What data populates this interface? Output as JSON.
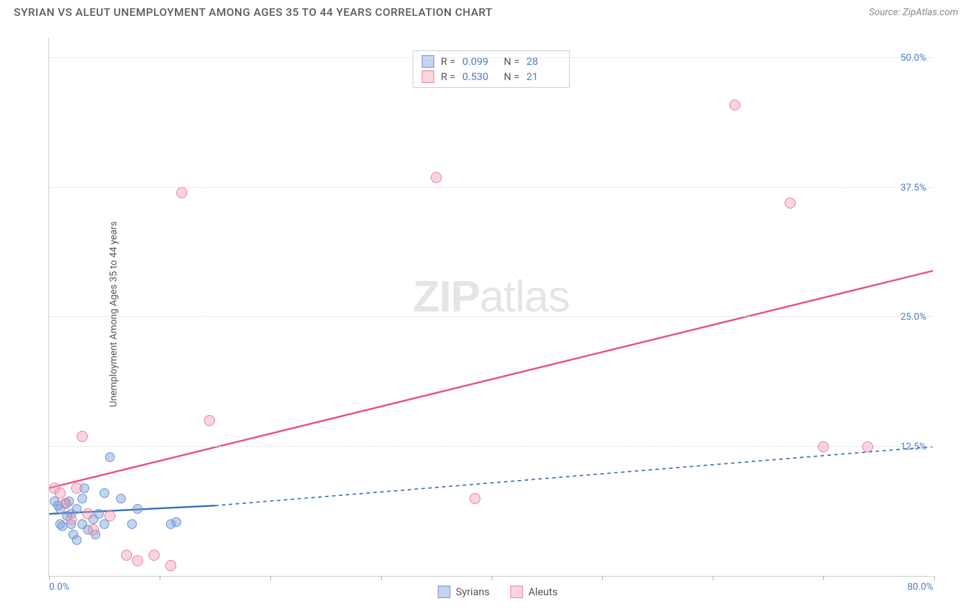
{
  "header": {
    "title": "SYRIAN VS ALEUT UNEMPLOYMENT AMONG AGES 35 TO 44 YEARS CORRELATION CHART",
    "source": "Source: ZipAtlas.com"
  },
  "watermark": {
    "part1": "ZIP",
    "part2": "atlas"
  },
  "chart": {
    "type": "scatter",
    "ylabel": "Unemployment Among Ages 35 to 44 years",
    "xlim": [
      0,
      80
    ],
    "ylim": [
      0,
      52
    ],
    "xtick_start_label": "0.0%",
    "xtick_end_label": "80.0%",
    "xtick_positions": [
      0,
      10,
      20,
      30,
      40,
      50,
      60,
      70,
      80
    ],
    "yticks": [
      {
        "v": 12.5,
        "label": "12.5%"
      },
      {
        "v": 25.0,
        "label": "25.0%"
      },
      {
        "v": 37.5,
        "label": "37.5%"
      },
      {
        "v": 50.0,
        "label": "50.0%"
      }
    ],
    "grid_color": "#e0e0e0",
    "background_color": "#ffffff",
    "axis_color": "#cccccc",
    "tick_label_color": "#4a7fc4",
    "label_fontsize": 14,
    "series": [
      {
        "name": "Syrians",
        "marker_color_fill": "rgba(120,160,220,0.45)",
        "marker_color_stroke": "#6a94cf",
        "marker_radius": 7,
        "line_color": "#3a6fb8",
        "line_width": 2.5,
        "line_dash_extended": "5,5",
        "trend": {
          "x1": 0,
          "y1": 6.0,
          "x2_solid": 15,
          "y2_solid": 6.8,
          "x2": 80,
          "y2": 12.5
        },
        "R": "0.099",
        "N": "28",
        "points": [
          {
            "x": 1.0,
            "y": 6.5
          },
          {
            "x": 1.5,
            "y": 7.0
          },
          {
            "x": 2.0,
            "y": 6.0
          },
          {
            "x": 2.0,
            "y": 5.0
          },
          {
            "x": 2.5,
            "y": 6.5
          },
          {
            "x": 3.0,
            "y": 7.5
          },
          {
            "x": 3.0,
            "y": 5.0
          },
          {
            "x": 3.5,
            "y": 4.5
          },
          {
            "x": 1.0,
            "y": 5.0
          },
          {
            "x": 0.8,
            "y": 6.8
          },
          {
            "x": 1.2,
            "y": 4.8
          },
          {
            "x": 1.8,
            "y": 7.2
          },
          {
            "x": 4.0,
            "y": 5.5
          },
          {
            "x": 4.5,
            "y": 6.0
          },
          {
            "x": 5.0,
            "y": 5.0
          },
          {
            "x": 5.0,
            "y": 8.0
          },
          {
            "x": 5.5,
            "y": 11.5
          },
          {
            "x": 2.5,
            "y": 3.5
          },
          {
            "x": 6.5,
            "y": 7.5
          },
          {
            "x": 7.5,
            "y": 5.0
          },
          {
            "x": 8.0,
            "y": 6.5
          },
          {
            "x": 11.0,
            "y": 5.0
          },
          {
            "x": 11.5,
            "y": 5.2
          },
          {
            "x": 3.2,
            "y": 8.5
          },
          {
            "x": 4.2,
            "y": 4.0
          },
          {
            "x": 2.2,
            "y": 4.0
          },
          {
            "x": 1.6,
            "y": 5.8
          },
          {
            "x": 0.5,
            "y": 7.2
          }
        ]
      },
      {
        "name": "Aleuts",
        "marker_color_fill": "rgba(240,150,175,0.40)",
        "marker_color_stroke": "#e8809f",
        "marker_radius": 8,
        "line_color": "#e55383",
        "line_width": 2.5,
        "trend": {
          "x1": 0,
          "y1": 8.5,
          "x2_solid": 80,
          "y2_solid": 29.5,
          "x2": 80,
          "y2": 29.5
        },
        "R": "0.530",
        "N": "21",
        "points": [
          {
            "x": 0.5,
            "y": 8.5
          },
          {
            "x": 1.0,
            "y": 8.0
          },
          {
            "x": 1.5,
            "y": 7.0
          },
          {
            "x": 2.0,
            "y": 5.5
          },
          {
            "x": 2.5,
            "y": 8.5
          },
          {
            "x": 3.0,
            "y": 13.5
          },
          {
            "x": 3.5,
            "y": 6.0
          },
          {
            "x": 4.0,
            "y": 4.5
          },
          {
            "x": 5.5,
            "y": 5.8
          },
          {
            "x": 7.0,
            "y": 2.0
          },
          {
            "x": 8.0,
            "y": 1.5
          },
          {
            "x": 9.5,
            "y": 2.0
          },
          {
            "x": 11.0,
            "y": 1.0
          },
          {
            "x": 12.0,
            "y": 37.0
          },
          {
            "x": 14.5,
            "y": 15.0
          },
          {
            "x": 35.0,
            "y": 38.5
          },
          {
            "x": 38.5,
            "y": 7.5
          },
          {
            "x": 62.0,
            "y": 45.5
          },
          {
            "x": 67.0,
            "y": 36.0
          },
          {
            "x": 70.0,
            "y": 12.5
          },
          {
            "x": 74.0,
            "y": 12.5
          }
        ]
      }
    ]
  },
  "stats_legend": {
    "R_label": "R =",
    "N_label": "N ="
  },
  "bottom_legend": {
    "label1": "Syrians",
    "label2": "Aleuts"
  }
}
